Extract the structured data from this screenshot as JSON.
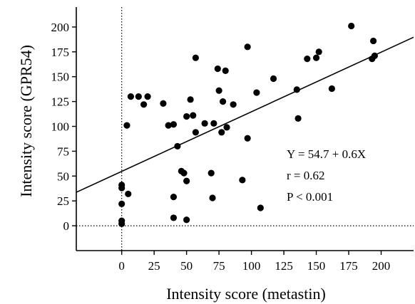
{
  "chart_data": {
    "type": "scatter",
    "title": "",
    "xlabel": "Intensity score (metastin)",
    "ylabel": "Intensity score (GPR54)",
    "xlim": [
      -35,
      225
    ],
    "ylim": [
      -25,
      220
    ],
    "x_ticks": [
      0,
      25,
      50,
      75,
      100,
      125,
      150,
      175,
      200
    ],
    "y_ticks": [
      0,
      25,
      50,
      75,
      100,
      125,
      150,
      175,
      200
    ],
    "grid": false,
    "reference_lines": [
      {
        "axis": "x",
        "value": 0,
        "style": "dotted"
      },
      {
        "axis": "y",
        "value": 0,
        "style": "dotted"
      }
    ],
    "regression": {
      "intercept": 54.7,
      "slope": 0.6
    },
    "annotations": [
      "Y = 54.7 + 0.6X",
      "r = 0.62",
      "P < 0.001"
    ],
    "points": [
      [
        0,
        2
      ],
      [
        0,
        5
      ],
      [
        0,
        22
      ],
      [
        0,
        38
      ],
      [
        0,
        41
      ],
      [
        4,
        101
      ],
      [
        7,
        130
      ],
      [
        5,
        32
      ],
      [
        13,
        130
      ],
      [
        17,
        122
      ],
      [
        20,
        130
      ],
      [
        32,
        123
      ],
      [
        36,
        101
      ],
      [
        40,
        102
      ],
      [
        40,
        8
      ],
      [
        40,
        29
      ],
      [
        43,
        80
      ],
      [
        46,
        55
      ],
      [
        48,
        53
      ],
      [
        50,
        110
      ],
      [
        50,
        45
      ],
      [
        50,
        6
      ],
      [
        53,
        127
      ],
      [
        55,
        111
      ],
      [
        57,
        94
      ],
      [
        57,
        169
      ],
      [
        64,
        103
      ],
      [
        69,
        53
      ],
      [
        70,
        28
      ],
      [
        71,
        103
      ],
      [
        74,
        158
      ],
      [
        75,
        136
      ],
      [
        77,
        94
      ],
      [
        78,
        125
      ],
      [
        80,
        156
      ],
      [
        81,
        99
      ],
      [
        86,
        122
      ],
      [
        93,
        46
      ],
      [
        97,
        180
      ],
      [
        97,
        88
      ],
      [
        104,
        134
      ],
      [
        107,
        18
      ],
      [
        117,
        148
      ],
      [
        135,
        137
      ],
      [
        136,
        108
      ],
      [
        143,
        168
      ],
      [
        150,
        169
      ],
      [
        152,
        175
      ],
      [
        162,
        138
      ],
      [
        177,
        201
      ],
      [
        193,
        168
      ],
      [
        194,
        186
      ],
      [
        195,
        171
      ]
    ]
  }
}
